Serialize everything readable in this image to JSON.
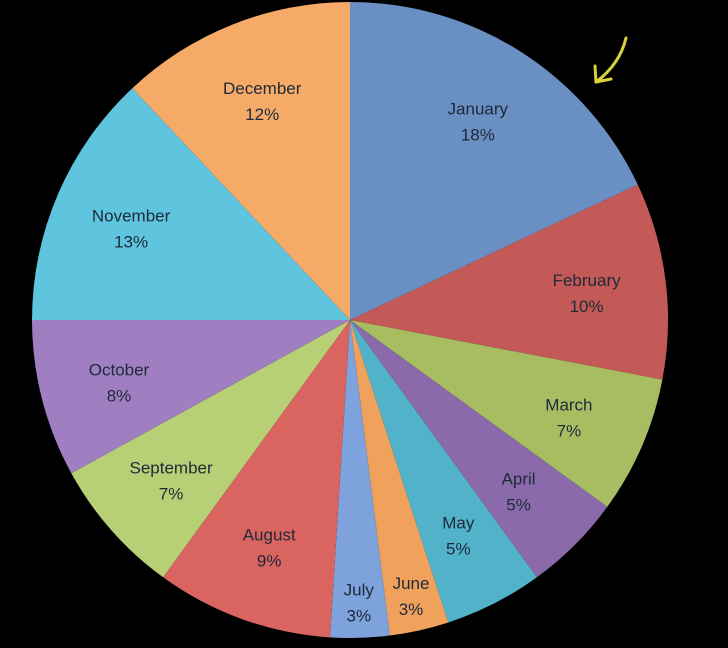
{
  "chart_data": {
    "type": "pie",
    "categories": [
      "January",
      "February",
      "March",
      "April",
      "May",
      "June",
      "July",
      "August",
      "September",
      "October",
      "November",
      "December"
    ],
    "values": [
      18,
      10,
      7,
      5,
      5,
      3,
      3,
      9,
      7,
      8,
      13,
      12
    ],
    "value_labels": [
      "18%",
      "10%",
      "7%",
      "5%",
      "5%",
      "3%",
      "3%",
      "9%",
      "7%",
      "8%",
      "13%",
      "12%"
    ],
    "colors": [
      "#6a8fc3",
      "#c45a57",
      "#a8bd62",
      "#8a6aaa",
      "#52b2c9",
      "#f0a25c",
      "#7ea2dc",
      "#da6460",
      "#b7d076",
      "#9f7fc2",
      "#5fc4de",
      "#f6aa68"
    ],
    "start_angle_deg": 0,
    "direction": "clockwise",
    "legend": "none",
    "title": "",
    "annotations": [
      {
        "type": "arrow",
        "color": "#d9d23a",
        "points_to": "January"
      }
    ]
  }
}
